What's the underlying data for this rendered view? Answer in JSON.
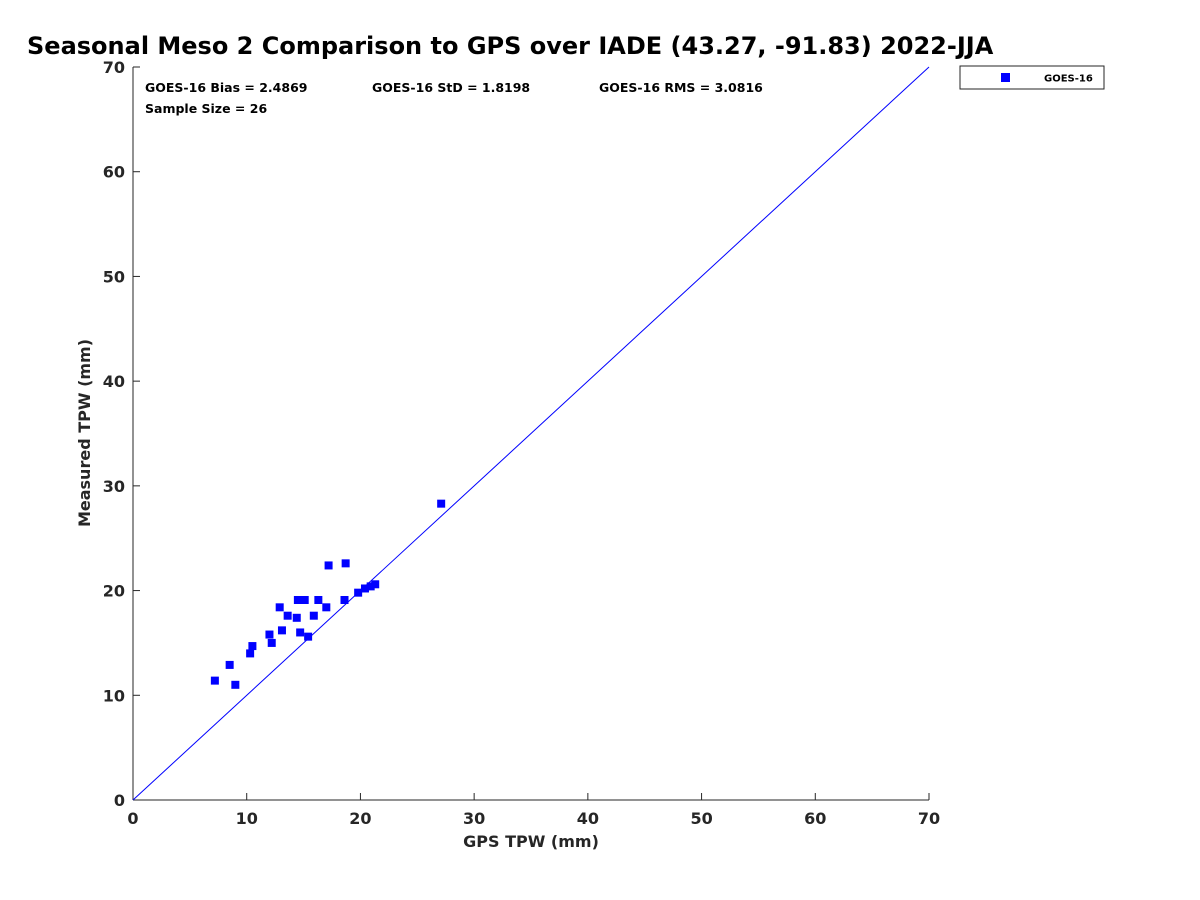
{
  "chart_data": {
    "type": "scatter",
    "title": "Seasonal Meso 2 Comparison to GPS over IADE (43.27, -91.83) 2022-JJA",
    "xlabel": "GPS TPW (mm)",
    "ylabel": "Measured TPW (mm)",
    "xlim": [
      0,
      70
    ],
    "ylim": [
      0,
      70
    ],
    "xticks": [
      "0",
      "10",
      "20",
      "30",
      "40",
      "50",
      "60",
      "70"
    ],
    "yticks": [
      "0",
      "10",
      "20",
      "30",
      "40",
      "50",
      "60",
      "70"
    ],
    "grid": false,
    "legend_position": "outside top-right",
    "reference_line": {
      "type": "1:1",
      "color": "#0000ff"
    },
    "stats": {
      "bias": "GOES-16 Bias = 2.4869",
      "std": "GOES-16 StD = 1.8198",
      "rms": "GOES-16 RMS = 3.0816",
      "sample_size": "Sample Size = 26"
    },
    "series": [
      {
        "name": "GOES-16",
        "color": "#0000ff",
        "marker": "square",
        "points": [
          [
            7.2,
            11.4
          ],
          [
            8.5,
            12.9
          ],
          [
            9.0,
            11.0
          ],
          [
            10.3,
            14.0
          ],
          [
            10.5,
            14.7
          ],
          [
            12.0,
            15.8
          ],
          [
            12.2,
            15.0
          ],
          [
            12.9,
            18.4
          ],
          [
            13.1,
            16.2
          ],
          [
            13.6,
            17.6
          ],
          [
            14.4,
            17.4
          ],
          [
            14.5,
            19.1
          ],
          [
            14.7,
            16.0
          ],
          [
            15.1,
            19.1
          ],
          [
            15.4,
            15.6
          ],
          [
            15.9,
            17.6
          ],
          [
            16.3,
            19.1
          ],
          [
            17.0,
            18.4
          ],
          [
            17.2,
            22.4
          ],
          [
            18.6,
            19.1
          ],
          [
            18.7,
            22.6
          ],
          [
            19.8,
            19.8
          ],
          [
            20.4,
            20.2
          ],
          [
            20.9,
            20.4
          ],
          [
            21.3,
            20.6
          ],
          [
            27.1,
            28.3
          ]
        ]
      }
    ]
  }
}
